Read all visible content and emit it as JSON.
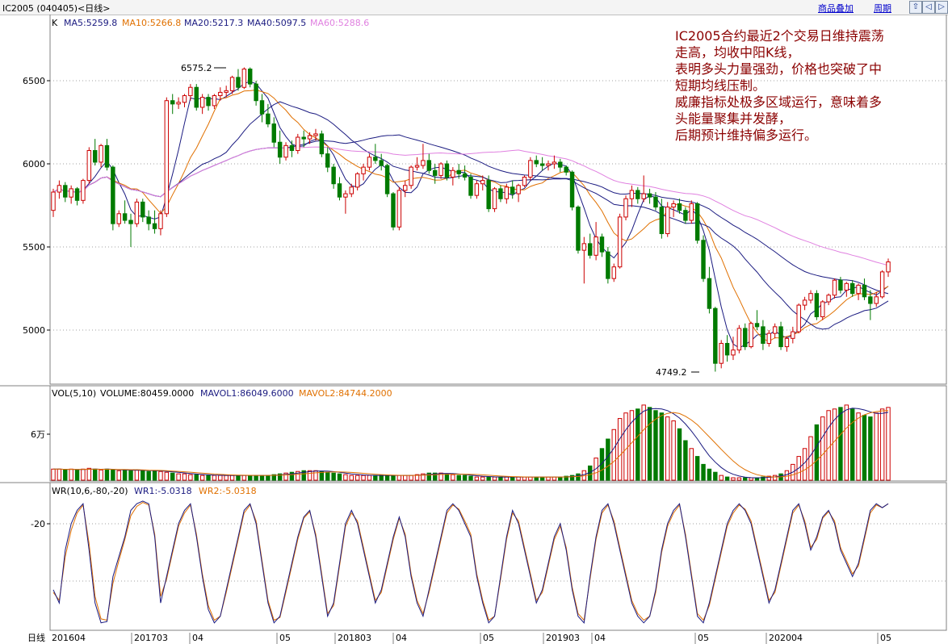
{
  "header": {
    "title": "IC2005 (040405)<日线>",
    "overlay_label": "商品叠加",
    "period_label": "周期",
    "nav_buttons": [
      "⇧",
      "◁",
      "▷"
    ]
  },
  "main_panel": {
    "k_label": "K",
    "ma_legends": [
      {
        "text": "MA5:5259.8",
        "color": "#1a1a80"
      },
      {
        "text": "MA10:5266.8",
        "color": "#e07000"
      },
      {
        "text": "MA20:5217.3",
        "color": "#1a1a80"
      },
      {
        "text": "MA40:5097.5",
        "color": "#1a1a80"
      },
      {
        "text": "MA60:5288.6",
        "color": "#e080e0"
      }
    ],
    "y_ticks": [
      "6500",
      "6000",
      "5500",
      "5000"
    ],
    "high_marker": "6575.2",
    "low_marker": "4749.2",
    "annotation_lines": [
      "IC2005合约最近2个交易日维持震荡",
      "走高，均收中阳K线，",
      "表明多头力量强劲，价格也突破了中",
      "短期均线压制。",
      "威廉指标处极多区域运行，意味着多",
      "头能量聚集并发酵，",
      "后期预计维持偏多运行。"
    ]
  },
  "volume_panel": {
    "legend_prefix": "VOL(5,10)",
    "volume_text": "VOLUME:80459.0000",
    "mavol1_text": "MAVOL1:86049.6000",
    "mavol2_text": "MAVOL2:84744.2000",
    "y_tick": "6万"
  },
  "wr_panel": {
    "legend_prefix": "WR(10,6,-80,-20)",
    "wr1_text": "WR1:-5.0318",
    "wr2_text": "WR2:-5.0318",
    "y_tick": "-20"
  },
  "x_axis": {
    "period_label": "日线",
    "labels": [
      "201604",
      "201703",
      "04",
      "05",
      "201803",
      "04",
      "05",
      "201903",
      "04",
      "05",
      "202004",
      "05"
    ]
  },
  "colors": {
    "up": "#cc0000",
    "down": "#007a00",
    "grid": "#a0a0a0",
    "ma5": "#1a1a80",
    "ma10": "#e07000",
    "ma60": "#e080e0",
    "annotation": "#8b0000"
  },
  "chart_data": {
    "type": "candlestick",
    "price_ticks": [
      5000,
      5500,
      6000,
      6500
    ],
    "candles": [
      [
        5720,
        5850,
        5680,
        5830
      ],
      [
        5830,
        5900,
        5790,
        5870
      ],
      [
        5870,
        5890,
        5770,
        5800
      ],
      [
        5800,
        5870,
        5760,
        5850
      ],
      [
        5850,
        5860,
        5750,
        5780
      ],
      [
        5780,
        5910,
        5760,
        5900
      ],
      [
        5900,
        6100,
        5880,
        6080
      ],
      [
        6080,
        6150,
        5990,
        6010
      ],
      [
        6010,
        6120,
        5980,
        6110
      ],
      [
        6110,
        6150,
        5960,
        5980
      ],
      [
        5980,
        5990,
        5600,
        5640
      ],
      [
        5640,
        5720,
        5620,
        5700
      ],
      [
        5700,
        5780,
        5640,
        5660
      ],
      [
        5660,
        5700,
        5500,
        5640
      ],
      [
        5640,
        5790,
        5620,
        5770
      ],
      [
        5770,
        5790,
        5650,
        5680
      ],
      [
        5680,
        5720,
        5600,
        5640
      ],
      [
        5640,
        5720,
        5580,
        5610
      ],
      [
        5610,
        5720,
        5570,
        5700
      ],
      [
        5700,
        6400,
        5680,
        6380
      ],
      [
        6380,
        6420,
        6300,
        6360
      ],
      [
        6360,
        6400,
        6330,
        6370
      ],
      [
        6370,
        6420,
        6340,
        6410
      ],
      [
        6410,
        6480,
        6380,
        6460
      ],
      [
        6460,
        6480,
        6320,
        6340
      ],
      [
        6340,
        6420,
        6300,
        6400
      ],
      [
        6400,
        6420,
        6320,
        6350
      ],
      [
        6350,
        6420,
        6330,
        6410
      ],
      [
        6410,
        6460,
        6380,
        6430
      ],
      [
        6430,
        6470,
        6400,
        6440
      ],
      [
        6440,
        6530,
        6420,
        6520
      ],
      [
        6520,
        6570,
        6440,
        6460
      ],
      [
        6460,
        6580,
        6450,
        6570
      ],
      [
        6570,
        6580,
        6460,
        6480
      ],
      [
        6480,
        6500,
        6350,
        6380
      ],
      [
        6380,
        6420,
        6250,
        6300
      ],
      [
        6300,
        6360,
        6220,
        6240
      ],
      [
        6240,
        6280,
        6100,
        6130
      ],
      [
        6130,
        6200,
        6000,
        6040
      ],
      [
        6040,
        6130,
        6020,
        6110
      ],
      [
        6110,
        6140,
        6040,
        6080
      ],
      [
        6080,
        6180,
        6060,
        6160
      ],
      [
        6160,
        6200,
        6100,
        6150
      ],
      [
        6150,
        6190,
        6120,
        6170
      ],
      [
        6170,
        6210,
        6140,
        6180
      ],
      [
        6180,
        6200,
        6040,
        6060
      ],
      [
        6060,
        6100,
        5950,
        5980
      ],
      [
        5980,
        6000,
        5850,
        5880
      ],
      [
        5880,
        5920,
        5780,
        5800
      ],
      [
        5800,
        5840,
        5700,
        5820
      ],
      [
        5820,
        5880,
        5800,
        5860
      ],
      [
        5860,
        5950,
        5840,
        5940
      ],
      [
        5940,
        6000,
        5900,
        5980
      ],
      [
        5980,
        6060,
        5960,
        6040
      ],
      [
        6040,
        6120,
        6000,
        6020
      ],
      [
        6020,
        6060,
        5960,
        5990
      ],
      [
        5990,
        6000,
        5800,
        5820
      ],
      [
        5820,
        5830,
        5600,
        5620
      ],
      [
        5620,
        5860,
        5600,
        5840
      ],
      [
        5840,
        5900,
        5800,
        5870
      ],
      [
        5870,
        5990,
        5850,
        5980
      ],
      [
        5980,
        6040,
        5960,
        5990
      ],
      [
        5990,
        6120,
        5970,
        6020
      ],
      [
        6020,
        6060,
        5940,
        5960
      ],
      [
        5960,
        6000,
        5880,
        5930
      ],
      [
        5930,
        6010,
        5910,
        6000
      ],
      [
        6000,
        6020,
        5900,
        5920
      ],
      [
        5920,
        5980,
        5870,
        5960
      ],
      [
        5960,
        6000,
        5910,
        5940
      ],
      [
        5940,
        5990,
        5900,
        5920
      ],
      [
        5920,
        5940,
        5790,
        5810
      ],
      [
        5810,
        5900,
        5790,
        5880
      ],
      [
        5880,
        5930,
        5840,
        5900
      ],
      [
        5900,
        5930,
        5710,
        5730
      ],
      [
        5730,
        5860,
        5710,
        5850
      ],
      [
        5850,
        5870,
        5770,
        5790
      ],
      [
        5790,
        5880,
        5760,
        5860
      ],
      [
        5860,
        5900,
        5790,
        5820
      ],
      [
        5820,
        5880,
        5770,
        5870
      ],
      [
        5870,
        5930,
        5860,
        5920
      ],
      [
        5920,
        6040,
        5900,
        6020
      ],
      [
        6020,
        6050,
        5980,
        6000
      ],
      [
        6000,
        6040,
        5960,
        5990
      ],
      [
        5990,
        6020,
        5960,
        6000
      ],
      [
        6000,
        6050,
        5970,
        6010
      ],
      [
        6010,
        6030,
        5950,
        5980
      ],
      [
        5980,
        5990,
        5930,
        5950
      ],
      [
        5950,
        5960,
        5720,
        5740
      ],
      [
        5740,
        5750,
        5460,
        5480
      ],
      [
        5480,
        5560,
        5280,
        5520
      ],
      [
        5520,
        5580,
        5430,
        5450
      ],
      [
        5450,
        5650,
        5420,
        5560
      ],
      [
        5560,
        5580,
        5440,
        5470
      ],
      [
        5470,
        5500,
        5280,
        5310
      ],
      [
        5310,
        5400,
        5290,
        5380
      ],
      [
        5380,
        5700,
        5370,
        5680
      ],
      [
        5680,
        5810,
        5660,
        5790
      ],
      [
        5790,
        5870,
        5740,
        5840
      ],
      [
        5840,
        5860,
        5760,
        5790
      ],
      [
        5790,
        5930,
        5770,
        5820
      ],
      [
        5820,
        5850,
        5760,
        5800
      ],
      [
        5800,
        5830,
        5720,
        5740
      ],
      [
        5740,
        5790,
        5550,
        5580
      ],
      [
        5580,
        5770,
        5560,
        5740
      ],
      [
        5740,
        5780,
        5680,
        5760
      ],
      [
        5760,
        5790,
        5700,
        5720
      ],
      [
        5720,
        5740,
        5640,
        5660
      ],
      [
        5660,
        5780,
        5640,
        5760
      ],
      [
        5760,
        5770,
        5520,
        5540
      ],
      [
        5540,
        5570,
        5290,
        5310
      ],
      [
        5310,
        5380,
        5100,
        5130
      ],
      [
        5130,
        5140,
        4750,
        4800
      ],
      [
        4800,
        4940,
        4770,
        4920
      ],
      [
        4920,
        4970,
        4810,
        4850
      ],
      [
        4850,
        4960,
        4820,
        4880
      ],
      [
        4880,
        5030,
        4860,
        5010
      ],
      [
        5010,
        5040,
        4880,
        4900
      ],
      [
        4900,
        5050,
        4890,
        5040
      ],
      [
        5040,
        5120,
        5000,
        5020
      ],
      [
        5020,
        5060,
        4880,
        4920
      ],
      [
        4920,
        5000,
        4900,
        4980
      ],
      [
        4980,
        5040,
        4950,
        5020
      ],
      [
        5020,
        5050,
        4880,
        4900
      ],
      [
        4900,
        4960,
        4870,
        4950
      ],
      [
        4950,
        5020,
        4920,
        4990
      ],
      [
        4990,
        5160,
        4980,
        5150
      ],
      [
        5150,
        5200,
        5120,
        5180
      ],
      [
        5180,
        5240,
        5160,
        5220
      ],
      [
        5220,
        5240,
        5060,
        5080
      ],
      [
        5080,
        5180,
        5060,
        5170
      ],
      [
        5170,
        5220,
        5150,
        5210
      ],
      [
        5210,
        5310,
        5190,
        5300
      ],
      [
        5300,
        5320,
        5220,
        5240
      ],
      [
        5240,
        5290,
        5200,
        5280
      ],
      [
        5280,
        5300,
        5200,
        5220
      ],
      [
        5220,
        5280,
        5180,
        5270
      ],
      [
        5270,
        5310,
        5180,
        5200
      ],
      [
        5200,
        5240,
        5060,
        5160
      ],
      [
        5160,
        5230,
        5140,
        5200
      ],
      [
        5200,
        5360,
        5190,
        5350
      ],
      [
        5350,
        5430,
        5320,
        5410
      ]
    ],
    "volume": [
      14,
      14,
      13,
      14,
      13,
      14,
      15,
      14,
      13,
      14,
      13,
      12,
      13,
      12,
      13,
      12,
      11,
      12,
      11,
      10,
      9,
      8,
      8,
      7,
      7,
      6,
      6,
      6,
      6,
      6,
      6,
      6,
      6,
      6,
      6,
      6,
      6,
      7,
      8,
      9,
      10,
      11,
      12,
      12,
      12,
      11,
      10,
      9,
      8,
      7,
      6,
      6,
      6,
      6,
      6,
      6,
      6,
      6,
      6,
      6,
      6,
      7,
      8,
      9,
      9,
      9,
      8,
      7,
      6,
      6,
      5,
      4,
      4,
      4,
      4,
      4,
      4,
      4,
      4,
      4,
      4,
      4,
      4,
      4,
      4,
      4,
      5,
      6,
      8,
      12,
      18,
      28,
      40,
      52,
      64,
      78,
      85,
      88,
      90,
      95,
      92,
      88,
      85,
      80,
      75,
      65,
      50,
      40,
      30,
      20,
      14,
      10,
      6,
      4,
      3,
      3,
      3,
      3,
      3,
      4,
      5,
      6,
      8,
      12,
      20,
      30,
      40,
      55,
      70,
      80,
      88,
      90,
      92,
      95,
      90,
      85,
      82,
      80,
      85,
      90,
      92,
      95,
      98,
      100,
      96,
      92,
      88,
      90,
      92,
      95,
      96,
      88,
      80
    ],
    "wr1": [
      -70,
      -80,
      -40,
      -20,
      -10,
      -5,
      -40,
      -80,
      -95,
      -94,
      -60,
      -45,
      -30,
      -10,
      -5,
      -3,
      -5,
      -30,
      -80,
      -60,
      -40,
      -20,
      -10,
      -5,
      -30,
      -60,
      -85,
      -95,
      -90,
      -70,
      -50,
      -30,
      -10,
      -5,
      -20,
      -50,
      -80,
      -95,
      -90,
      -70,
      -50,
      -30,
      -15,
      -10,
      -30,
      -60,
      -90,
      -80,
      -50,
      -20,
      -10,
      -20,
      -40,
      -60,
      -80,
      -70,
      -50,
      -30,
      -15,
      -30,
      -60,
      -80,
      -90,
      -70,
      -50,
      -30,
      -10,
      -5,
      -10,
      -20,
      -30,
      -60,
      -80,
      -95,
      -90,
      -60,
      -30,
      -10,
      -20,
      -40,
      -60,
      -80,
      -70,
      -50,
      -30,
      -20,
      -40,
      -70,
      -90,
      -95,
      -60,
      -30,
      -10,
      -5,
      -20,
      -40,
      -60,
      -80,
      -90,
      -95,
      -90,
      -70,
      -40,
      -20,
      -10,
      -5,
      -30,
      -60,
      -90,
      -95,
      -80,
      -60,
      -40,
      -20,
      -10,
      -5,
      -10,
      -20,
      -40,
      -60,
      -80,
      -70,
      -50,
      -30,
      -10,
      -5,
      -20,
      -40,
      -30,
      -15,
      -10,
      -20,
      -40,
      -50,
      -60,
      -50,
      -30,
      -10,
      -5,
      -8,
      -5
    ],
    "wr2": [
      -72,
      -78,
      -45,
      -25,
      -12,
      -6,
      -35,
      -75,
      -92,
      -93,
      -65,
      -48,
      -32,
      -14,
      -7,
      -4,
      -6,
      -28,
      -75,
      -62,
      -42,
      -22,
      -12,
      -6,
      -28,
      -58,
      -82,
      -93,
      -90,
      -72,
      -52,
      -32,
      -12,
      -6,
      -18,
      -48,
      -78,
      -93,
      -91,
      -72,
      -52,
      -32,
      -16,
      -11,
      -28,
      -58,
      -88,
      -82,
      -52,
      -22,
      -12,
      -18,
      -38,
      -58,
      -78,
      -72,
      -52,
      -32,
      -16,
      -28,
      -58,
      -78,
      -88,
      -72,
      -52,
      -32,
      -12,
      -6,
      -9,
      -18,
      -28,
      -58,
      -78,
      -93,
      -90,
      -62,
      -32,
      -12,
      -18,
      -38,
      -58,
      -78,
      -72,
      -52,
      -32,
      -22,
      -38,
      -68,
      -88,
      -93,
      -62,
      -32,
      -12,
      -6,
      -18,
      -38,
      -58,
      -78,
      -88,
      -93,
      -90,
      -72,
      -42,
      -22,
      -12,
      -6,
      -28,
      -58,
      -88,
      -93,
      -82,
      -62,
      -42,
      -22,
      -12,
      -6,
      -9,
      -18,
      -38,
      -58,
      -78,
      -72,
      -52,
      -32,
      -12,
      -6,
      -18,
      -38,
      -32,
      -16,
      -11,
      -18,
      -38,
      -48,
      -58,
      -52,
      -32,
      -12,
      -6,
      -8,
      -5
    ]
  }
}
